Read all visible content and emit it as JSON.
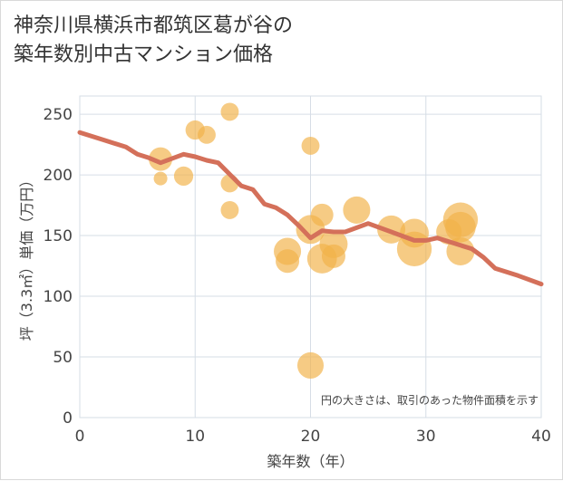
{
  "title_lines": [
    "神奈川県横浜市都筑区葛が谷の",
    "築年数別中古マンション価格"
  ],
  "chart_data": {
    "type": "scatter",
    "xlabel": "築年数（年）",
    "ylabel": "坪（3.3㎡）単価（万円）",
    "xlim": [
      0,
      40
    ],
    "ylim": [
      0,
      265
    ],
    "x_ticks": [
      0,
      10,
      20,
      30,
      40
    ],
    "y_ticks": [
      0,
      50,
      100,
      150,
      200,
      250
    ],
    "grid": true,
    "annotation": "円の大きさは、取引のあった物件面積を示す",
    "colors": {
      "bubble": "#f2b24a",
      "line": "#d4705a",
      "grid": "#d6dde6"
    },
    "bubbles": [
      {
        "x": 7,
        "y": 213,
        "size": 60
      },
      {
        "x": 7,
        "y": 197,
        "size": 20
      },
      {
        "x": 9,
        "y": 199,
        "size": 40
      },
      {
        "x": 10,
        "y": 237,
        "size": 40
      },
      {
        "x": 11,
        "y": 233,
        "size": 35
      },
      {
        "x": 13,
        "y": 252,
        "size": 35
      },
      {
        "x": 13,
        "y": 193,
        "size": 35
      },
      {
        "x": 13,
        "y": 171,
        "size": 35
      },
      {
        "x": 18,
        "y": 137,
        "size": 80
      },
      {
        "x": 18,
        "y": 129,
        "size": 60
      },
      {
        "x": 20,
        "y": 224,
        "size": 35
      },
      {
        "x": 20,
        "y": 155,
        "size": 90
      },
      {
        "x": 20,
        "y": 43,
        "size": 75
      },
      {
        "x": 21,
        "y": 167,
        "size": 55
      },
      {
        "x": 21,
        "y": 131,
        "size": 95
      },
      {
        "x": 22,
        "y": 143,
        "size": 85
      },
      {
        "x": 22,
        "y": 133,
        "size": 60
      },
      {
        "x": 24,
        "y": 171,
        "size": 80
      },
      {
        "x": 27,
        "y": 155,
        "size": 85
      },
      {
        "x": 29,
        "y": 152,
        "size": 90
      },
      {
        "x": 29,
        "y": 139,
        "size": 130
      },
      {
        "x": 32,
        "y": 153,
        "size": 70
      },
      {
        "x": 33,
        "y": 163,
        "size": 130
      },
      {
        "x": 33,
        "y": 157,
        "size": 100
      },
      {
        "x": 33,
        "y": 137,
        "size": 85
      }
    ],
    "trend": {
      "x": [
        0,
        2,
        4,
        5,
        6,
        7,
        9,
        10,
        11,
        12,
        14,
        15,
        16,
        17,
        18,
        19,
        20,
        21,
        22,
        23,
        25,
        27,
        29,
        30,
        31,
        33,
        34,
        35,
        36,
        38,
        40
      ],
      "y": [
        235,
        229,
        223,
        217,
        214,
        210,
        217,
        215,
        212,
        210,
        191,
        188,
        176,
        173,
        167,
        158,
        148,
        154,
        153,
        153,
        160,
        153,
        146,
        146,
        148,
        142,
        139,
        132,
        123,
        117,
        110
      ]
    }
  }
}
